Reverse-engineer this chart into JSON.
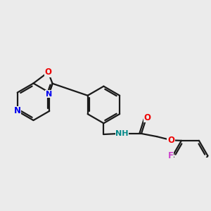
{
  "bg_color": "#ebebeb",
  "bond_color": "#1a1a1a",
  "bond_width": 1.6,
  "atom_colors": {
    "N": "#0000ee",
    "O": "#ee0000",
    "F": "#cc44cc",
    "NH": "#008888"
  },
  "font_size": 8.5
}
